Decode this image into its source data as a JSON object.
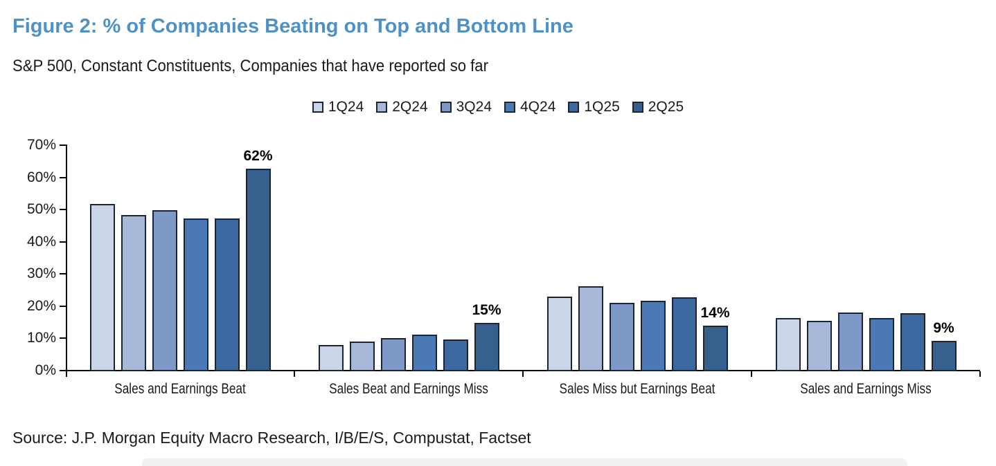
{
  "header": {
    "title": "Figure 2: % of Companies Beating on Top and Bottom Line",
    "subtitle": "S&P 500, Constant Constituents, Companies that have reported so far"
  },
  "source_note": "Source: J.P. Morgan Equity Macro Research, I/B/E/S, Compustat, Factset",
  "colors": {
    "title_blue": "#4E91C6",
    "text": "#1A1A1A",
    "axis": "#000000",
    "bar_border": "#1B2430",
    "bottom_strip": "#F1F1F1"
  },
  "chart_data": {
    "type": "bar",
    "title": "% of Companies Beating on Top and Bottom Line",
    "categories": [
      "Sales and Earnings Beat",
      "Sales Beat and Earnings Miss",
      "Sales Miss but Earnings Beat",
      "Sales and Earnings Miss"
    ],
    "series": [
      {
        "name": "1Q24",
        "color": "#CBD5E8",
        "values": [
          51.5,
          7.7,
          22.8,
          16.1
        ]
      },
      {
        "name": "2Q24",
        "color": "#A7B8D8",
        "values": [
          48.0,
          8.9,
          25.9,
          15.3
        ]
      },
      {
        "name": "3Q24",
        "color": "#7E98C7",
        "values": [
          49.7,
          9.9,
          20.9,
          17.9
        ]
      },
      {
        "name": "4Q24",
        "color": "#4A79B6",
        "values": [
          47.0,
          11.0,
          21.4,
          16.1
        ]
      },
      {
        "name": "1Q25",
        "color": "#3D68A0",
        "values": [
          47.0,
          9.5,
          22.5,
          17.5
        ]
      },
      {
        "name": "2Q25",
        "color": "#37608F",
        "values": [
          62.4,
          14.7,
          13.8,
          9.1
        ],
        "data_labels": [
          "62%",
          "15%",
          "14%",
          "9%"
        ]
      }
    ],
    "y_ticks": [
      "0%",
      "10%",
      "20%",
      "30%",
      "40%",
      "50%",
      "60%",
      "70%"
    ],
    "ylim": [
      0,
      70
    ],
    "y_unit": "%",
    "grid": false,
    "legend_position": "top-center"
  }
}
